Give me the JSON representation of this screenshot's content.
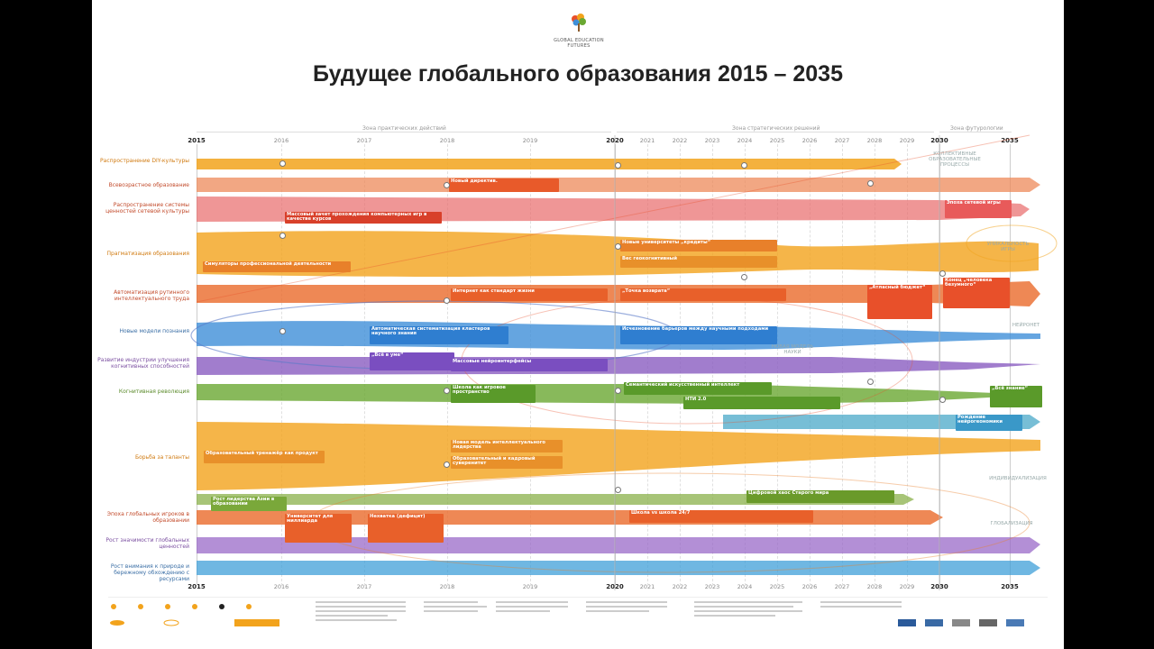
{
  "brand": "GLOBAL EDUCATION FUTURES",
  "title": "Будущее глобального образования 2015 – 2035",
  "zones": {
    "practical": "Зона практических действий",
    "strategic": "Зона стратегических решений",
    "futurology": "Зона футурологии"
  },
  "years_top": [
    "2015",
    "2016",
    "2017",
    "2018",
    "2019",
    "2020",
    "2021",
    "2022",
    "2023",
    "2024",
    "2025",
    "2026",
    "2027",
    "2028",
    "2029",
    "2030",
    "2035"
  ],
  "years_bottom": [
    "2015",
    "2016",
    "2017",
    "2018",
    "2019",
    "2020",
    "2021",
    "2022",
    "2023",
    "2024",
    "2025",
    "2026",
    "2027",
    "2028",
    "2029",
    "2030",
    "2035"
  ],
  "rows": [
    {
      "label": "Распространение DIY-культуры"
    },
    {
      "label": "Всевозрастное образование"
    },
    {
      "label": "Распространение системы ценностей сетевой культуры"
    },
    {
      "label": "Прагматизация образования"
    },
    {
      "label": "Автоматизация рутинного интеллектуального труда"
    },
    {
      "label": "Новые модели познания"
    },
    {
      "label": "Развитие индустрии улучшения когнитивных способностей"
    },
    {
      "label": "Когнитивная революция"
    },
    {
      "label": "Борьба за таланты"
    },
    {
      "label": "Эпоха глобальных игроков в образовании"
    },
    {
      "label": "Рост значимости глобальных ценностей"
    },
    {
      "label": "Рост внимания к природе и бережному обхождению с ресурсами"
    }
  ],
  "cards": {
    "c1": "Новый директив.",
    "c2": "Массовый зачет прохождения компьютерных игр в качестве курсов",
    "c3": "Симуляторы профессиональной деятельности",
    "c4": "Новые университеты „кредиты“",
    "c5": "Вес геокогнитивный",
    "c6": "Интернет как стандарт жизни",
    "c7": "„Точка возврата“",
    "c8": "Автоматическая систематизация кластеров научного знания",
    "c9": "Исчезновение барьеров между научными подходами",
    "c10": "„Всё в уме“",
    "c11": "Массовые нейроинтерфейсы",
    "c12": "Школа как игровое пространство",
    "c13": "Семантический искусственный интеллект",
    "c14": "НТИ 2.0",
    "c15": "„Всё знание“",
    "c16": "Образовательный тренажёр как продукт",
    "c17": "Новая модель интеллектуального лидерства",
    "c18": "Образовательный и кадровый суверенитет",
    "c19": "Рост лидерства Азии в образовании",
    "c20": "Университет для миллиарда",
    "c21": "Нехватка (дефицит)",
    "c22": "Цифровой хаос Старого мира",
    "c23": "Школа vs школа 24/7",
    "c24": "„Атласный бюджет“",
    "c25": "Конец „человека безумного“",
    "c26": "Эпоха сетевой игры",
    "c27": "Рождение нейрогеономики"
  },
  "side_labels": {
    "s1": "КОЛЛЕКТИВНЫЕ ОБРАЗОВАТЕЛЬНЫЕ ПРОЦЕССЫ",
    "s2": "УНИКАЛЬНОСТЬ ИГРЫ",
    "s3": "НЕЙРОНЕТ",
    "s4": "НОВАЯ МОДЕЛЬ НАУКИ",
    "s5": "ИНДИВИДУАЛИЗАЦИЯ",
    "s6": "ГЛОБАЛИЗАЦИЯ"
  },
  "colors": {
    "orange": "#f2a31c",
    "red": "#e8502a",
    "pink": "#e87a7a",
    "blue": "#3f8fd8",
    "purple": "#8a5cc0",
    "green": "#6aa832",
    "teal": "#4aa8c8"
  }
}
